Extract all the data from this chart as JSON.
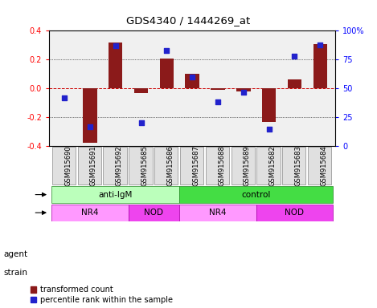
{
  "title": "GDS4340 / 1444269_at",
  "samples": [
    "GSM915690",
    "GSM915691",
    "GSM915692",
    "GSM915685",
    "GSM915686",
    "GSM915687",
    "GSM915688",
    "GSM915689",
    "GSM915682",
    "GSM915683",
    "GSM915684"
  ],
  "bar_values": [
    0.0,
    -0.38,
    0.32,
    -0.03,
    0.21,
    0.1,
    -0.01,
    -0.02,
    -0.23,
    0.06,
    0.31
  ],
  "dot_values": [
    42,
    17,
    87,
    20,
    83,
    60,
    38,
    47,
    15,
    78,
    88
  ],
  "bar_color": "#8B1A1A",
  "dot_color": "#2222CC",
  "ylim_left": [
    -0.4,
    0.4
  ],
  "yticks_left": [
    -0.4,
    -0.2,
    0.0,
    0.2,
    0.4
  ],
  "ytick_labels_right": [
    "0",
    "25",
    "50",
    "75",
    "100%"
  ],
  "ytick_vals_right": [
    0,
    25,
    50,
    75,
    100
  ],
  "agent_labels": [
    {
      "label": "anti-IgM",
      "start": 0,
      "end": 5,
      "color": "#BBFFBB"
    },
    {
      "label": "control",
      "start": 5,
      "end": 11,
      "color": "#44DD44"
    }
  ],
  "strain_labels": [
    {
      "label": "NR4",
      "start": 0,
      "end": 3,
      "color": "#FF99FF"
    },
    {
      "label": "NOD",
      "start": 3,
      "end": 5,
      "color": "#EE44EE"
    },
    {
      "label": "NR4",
      "start": 5,
      "end": 8,
      "color": "#FF99FF"
    },
    {
      "label": "NOD",
      "start": 8,
      "end": 11,
      "color": "#EE44EE"
    }
  ],
  "legend_bar_label": "transformed count",
  "legend_dot_label": "percentile rank within the sample",
  "hline_color": "#CC0000",
  "bg_color": "#F0F0F0",
  "bar_width": 0.55
}
